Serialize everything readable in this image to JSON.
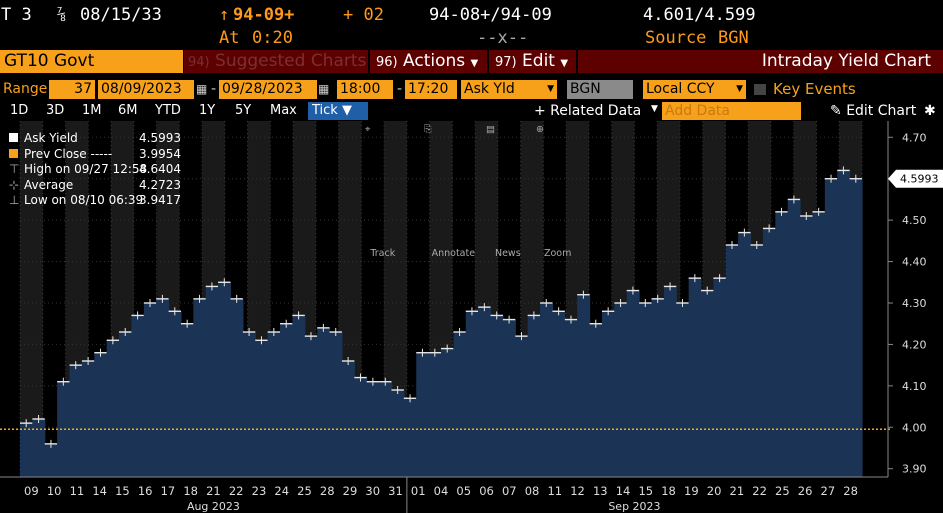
{
  "header": {
    "security": "T 3",
    "coupon_frac": "⅞",
    "maturity": "08/15/33",
    "price_change_arrow": "↑",
    "price": "94-09+",
    "change": "+ 02",
    "bid_ask_price": "94-08+/94-09",
    "yields": "4.601/4.599",
    "at_label": "At",
    "time": "0:20",
    "placeholder": "--x--",
    "source_label": "Source",
    "source": "BGN"
  },
  "toolbar": {
    "ticker": "GT10 Govt",
    "suggested_num": "94)",
    "suggested_label": "Suggested Charts",
    "actions_num": "96)",
    "actions_label": "Actions",
    "edit_num": "97)",
    "edit_label": "Edit",
    "chart_title": "Intraday Yield Chart"
  },
  "range": {
    "label": "Range",
    "days": "37",
    "start_date": "08/09/2023",
    "end_date": "09/28/2023",
    "start_time": "18:00",
    "end_time": "17:20",
    "field": "Ask Yld",
    "source": "BGN",
    "currency": "Local CCY",
    "key_events": "Key Events"
  },
  "periods": [
    "1D",
    "3D",
    "1M",
    "6M",
    "YTD",
    "1Y",
    "5Y",
    "Max"
  ],
  "active_period": "Tick ▼",
  "related_data": "+ Related Data",
  "add_data_placeholder": "Add Data",
  "edit_chart": "Edit Chart",
  "tools": [
    "Track",
    "Annotate",
    "News",
    "Zoom"
  ],
  "legend": [
    {
      "label": "Ask Yield",
      "value": "4.5993"
    },
    {
      "label": "Prev Close -----",
      "value": "3.9954"
    },
    {
      "label": "High on 09/27 12:58",
      "value": "4.6404"
    },
    {
      "label": "Average",
      "value": "4.2723"
    },
    {
      "label": "Low on 08/10 06:39",
      "value": "3.9417"
    }
  ],
  "colors": {
    "accent": "#f7a11a",
    "header_orange": "#ff9a1a",
    "dark_red": "#5c0000",
    "bar_fill": "#1b3354",
    "prev_close": "#f5a623"
  },
  "chart_data": {
    "type": "area",
    "ylim": [
      3.88,
      4.72
    ],
    "yticks": [
      "4.70",
      "4.60",
      "4.50",
      "4.40",
      "4.30",
      "4.20",
      "4.10",
      "4.00",
      "3.90"
    ],
    "last_value_label": "4.5993",
    "prev_close": 3.9954,
    "x_labels": [
      "09",
      "10",
      "11",
      "14",
      "15",
      "16",
      "17",
      "18",
      "21",
      "22",
      "23",
      "24",
      "25",
      "28",
      "29",
      "30",
      "31",
      "01",
      "04",
      "05",
      "06",
      "07",
      "08",
      "11",
      "12",
      "13",
      "14",
      "15",
      "18",
      "19",
      "20",
      "21",
      "22",
      "25",
      "26",
      "27",
      "28"
    ],
    "months": [
      "Aug 2023",
      "Sep 2023"
    ],
    "series": [
      {
        "values": [
          4.01,
          4.02,
          3.96,
          4.11,
          4.15,
          4.16,
          4.18,
          4.21,
          4.23,
          4.27,
          4.3,
          4.31,
          4.28,
          4.25,
          4.31,
          4.34,
          4.35,
          4.31,
          4.23,
          4.21,
          4.23,
          4.25,
          4.27,
          4.22,
          4.24,
          4.23,
          4.16,
          4.12,
          4.11,
          4.11,
          4.09,
          4.07,
          4.18,
          4.18,
          4.19,
          4.23,
          4.28,
          4.29,
          4.27,
          4.26,
          4.22,
          4.27,
          4.3,
          4.28,
          4.26,
          4.32,
          4.25,
          4.28,
          4.3,
          4.33,
          4.3,
          4.31,
          4.34,
          4.3,
          4.36,
          4.33,
          4.36,
          4.44,
          4.47,
          4.44,
          4.48,
          4.52,
          4.55,
          4.51,
          4.52,
          4.6,
          4.62,
          4.6
        ]
      }
    ]
  }
}
